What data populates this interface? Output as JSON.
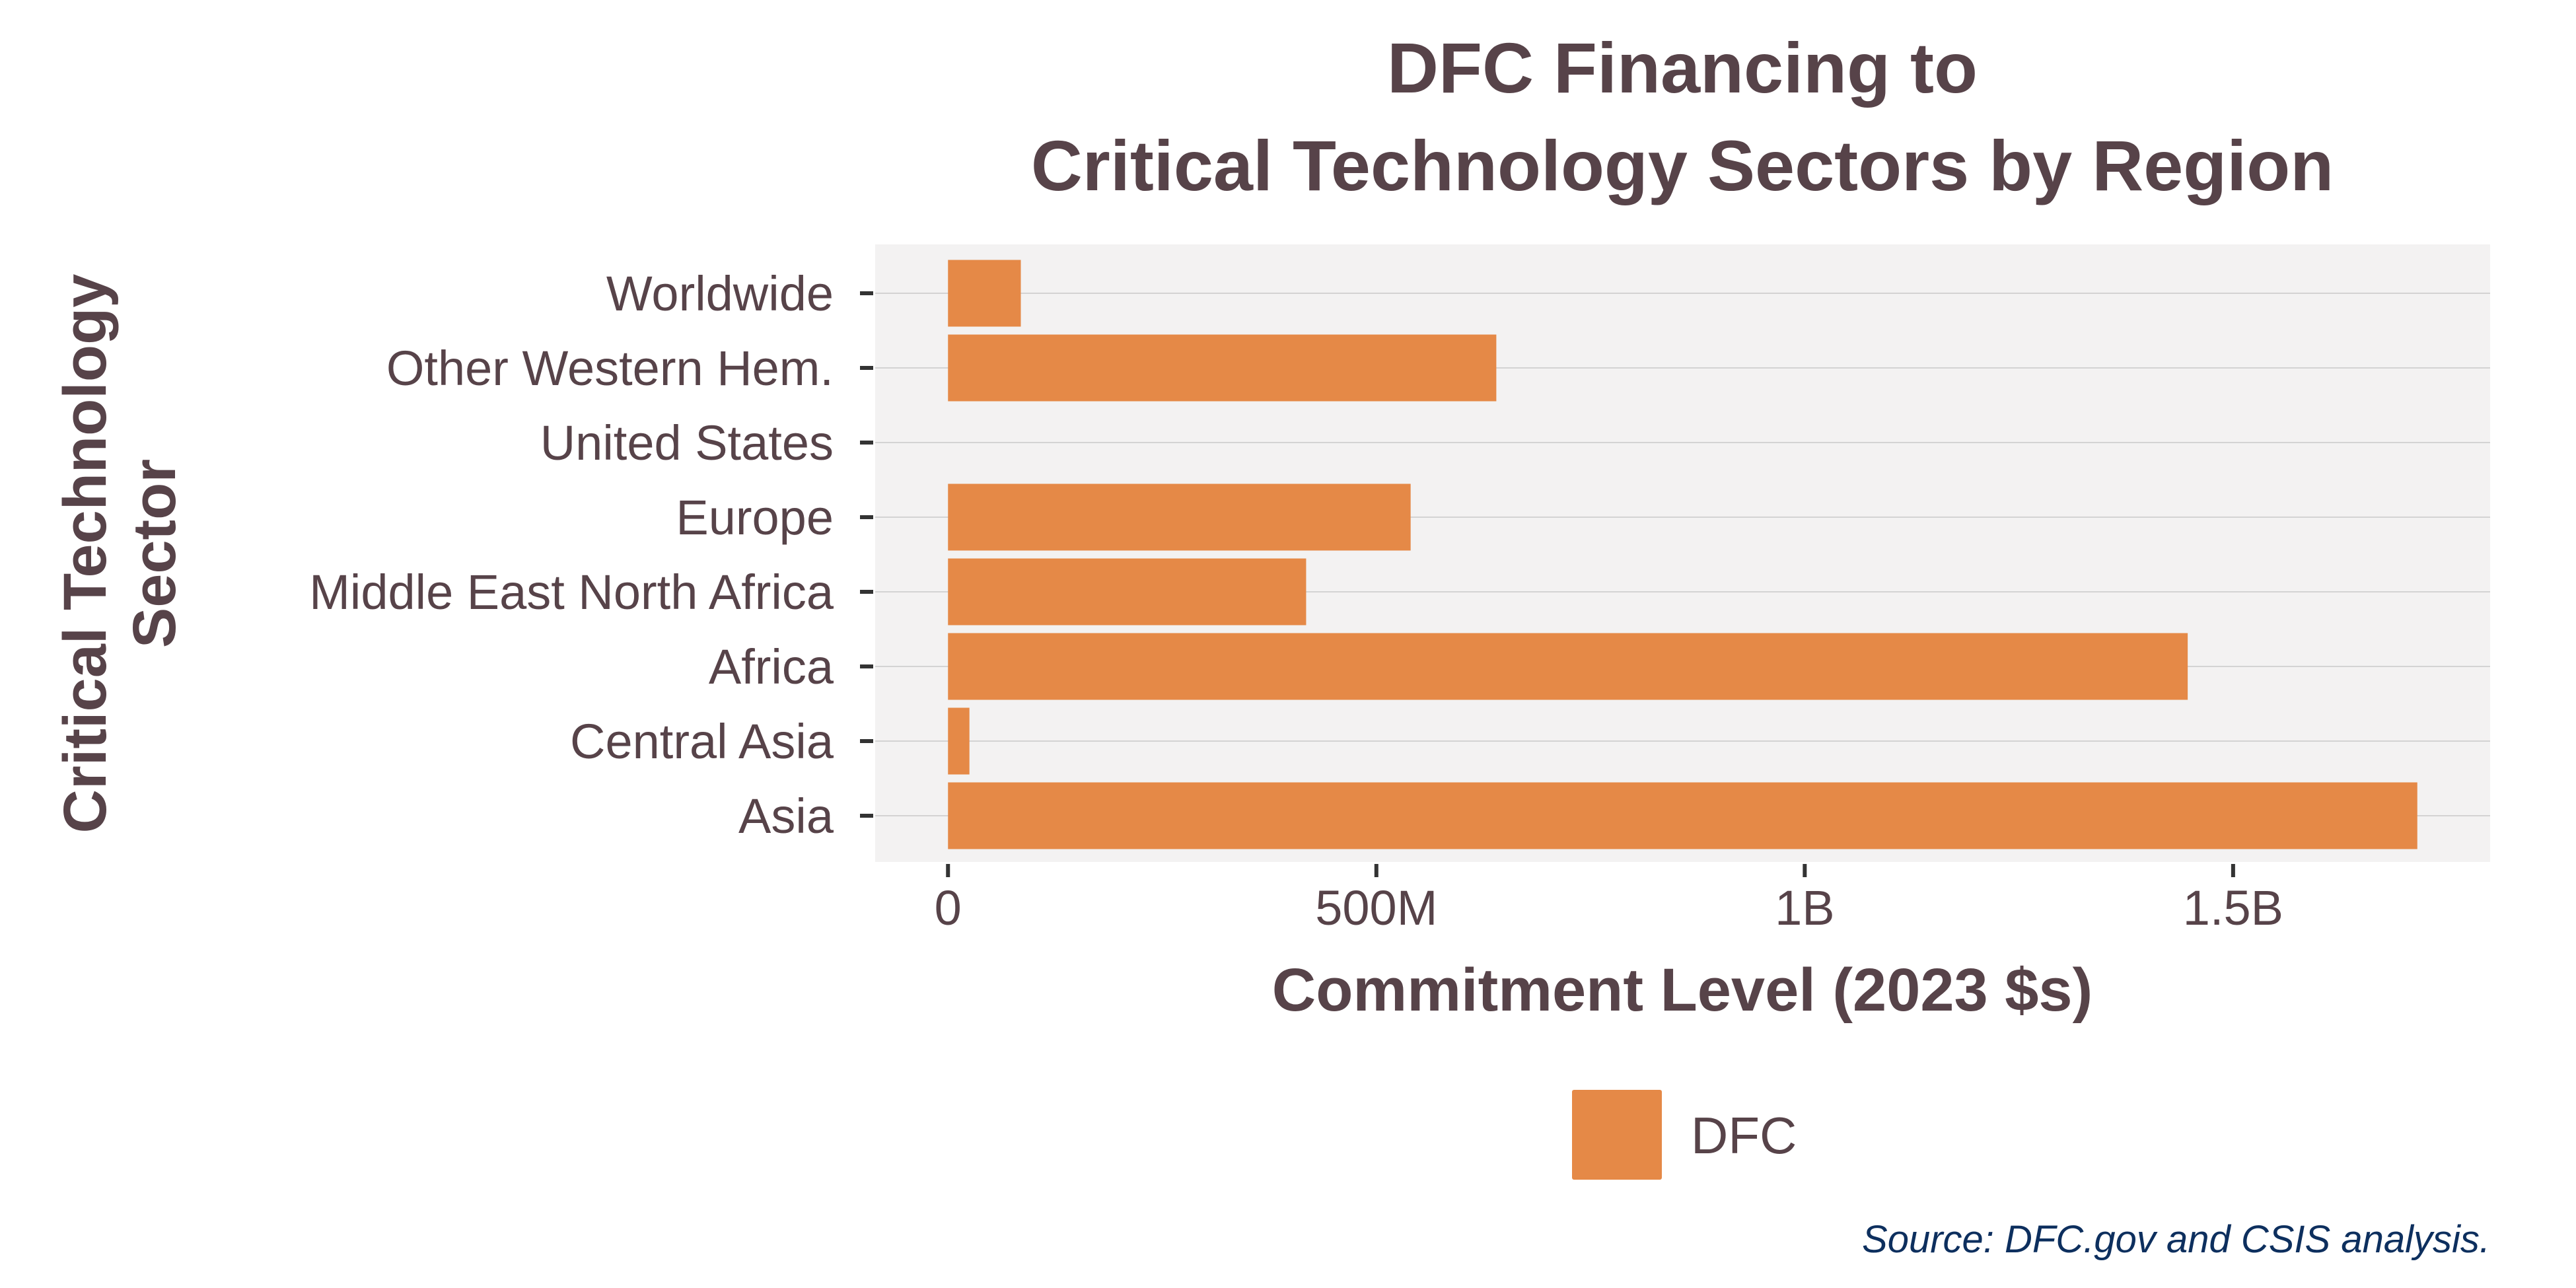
{
  "chart_data": {
    "type": "bar",
    "orientation": "horizontal",
    "title": [
      "DFC Financing to",
      "Critical Technology Sectors by Region"
    ],
    "xlabel": "Commitment Level (2023 $s)",
    "ylabel": [
      "Critical Technology",
      "Sector"
    ],
    "categories": [
      "Worldwide",
      "Other Western Hem.",
      "United States",
      "Europe",
      "Middle East North Africa",
      "Africa",
      "Central Asia",
      "Asia"
    ],
    "series": [
      {
        "name": "DFC",
        "color": "#e58947",
        "values": [
          85000000,
          640000000,
          0,
          540000000,
          418000000,
          1447000000,
          25000000,
          1715000000
        ]
      }
    ],
    "xlim": [
      -85000000,
      1800000000
    ],
    "xticks": [
      {
        "value": 0,
        "label": "0"
      },
      {
        "value": 500000000,
        "label": "500M"
      },
      {
        "value": 1000000000,
        "label": "1B"
      },
      {
        "value": 1500000000,
        "label": "1.5B"
      }
    ],
    "grid": "horizontal",
    "legend_position": "bottom",
    "panel_color": "#f3f2f2",
    "source": "Source:  DFC.gov and CSIS analysis."
  }
}
